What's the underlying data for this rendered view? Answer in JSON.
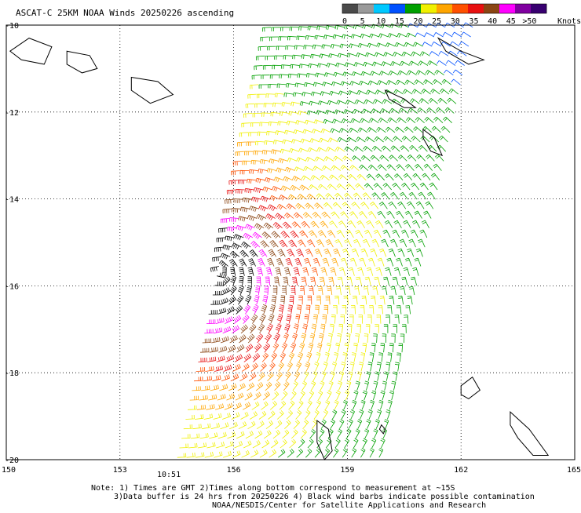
{
  "chart_data": {
    "type": "scatter",
    "title": "ASCAT-C 25KM NOAA Winds 20250226 ascending",
    "x_ticks": [
      "150",
      "153",
      "156",
      "159",
      "162",
      "165"
    ],
    "y_ticks": [
      "-10",
      "-12",
      "-14",
      "-16",
      "-18",
      "-20"
    ],
    "xlim": [
      150,
      165
    ],
    "ylim": [
      -20,
      -10
    ],
    "grid": true,
    "colorbar": {
      "labels": [
        "0",
        "5",
        "10",
        "15",
        "20",
        "25",
        "30",
        "35",
        "40",
        "45",
        ">50"
      ],
      "unit": "Knots",
      "colors": [
        "#4a4a4a",
        "#9a9a9a",
        "#00c8ff",
        "#0050ff",
        "#00a000",
        "#f0f000",
        "#ffa500",
        "#ff5000",
        "#e81010",
        "#8b4513",
        "#ff00ff",
        "#8000a0",
        "#380070"
      ]
    },
    "time_label": "10:51",
    "time_label_color": "#800080",
    "notes": [
      "Note: 1) Times are GMT 2)Times along bottom correspond to measurement at ~15S",
      "3)Data buffer is 24 hrs from 20250226 4) Black wind barbs indicate possible contamination",
      "NOAA/NESDIS/Center for Satellite Applications and Research"
    ],
    "cyclone_center": {
      "lon": 155.6,
      "lat": -15.7
    },
    "swath": {
      "lon_min_bottom": 154.5,
      "lon_max_bottom": 160.0,
      "lon_min_top": 157.0,
      "lon_max_top": 162.5
    }
  }
}
